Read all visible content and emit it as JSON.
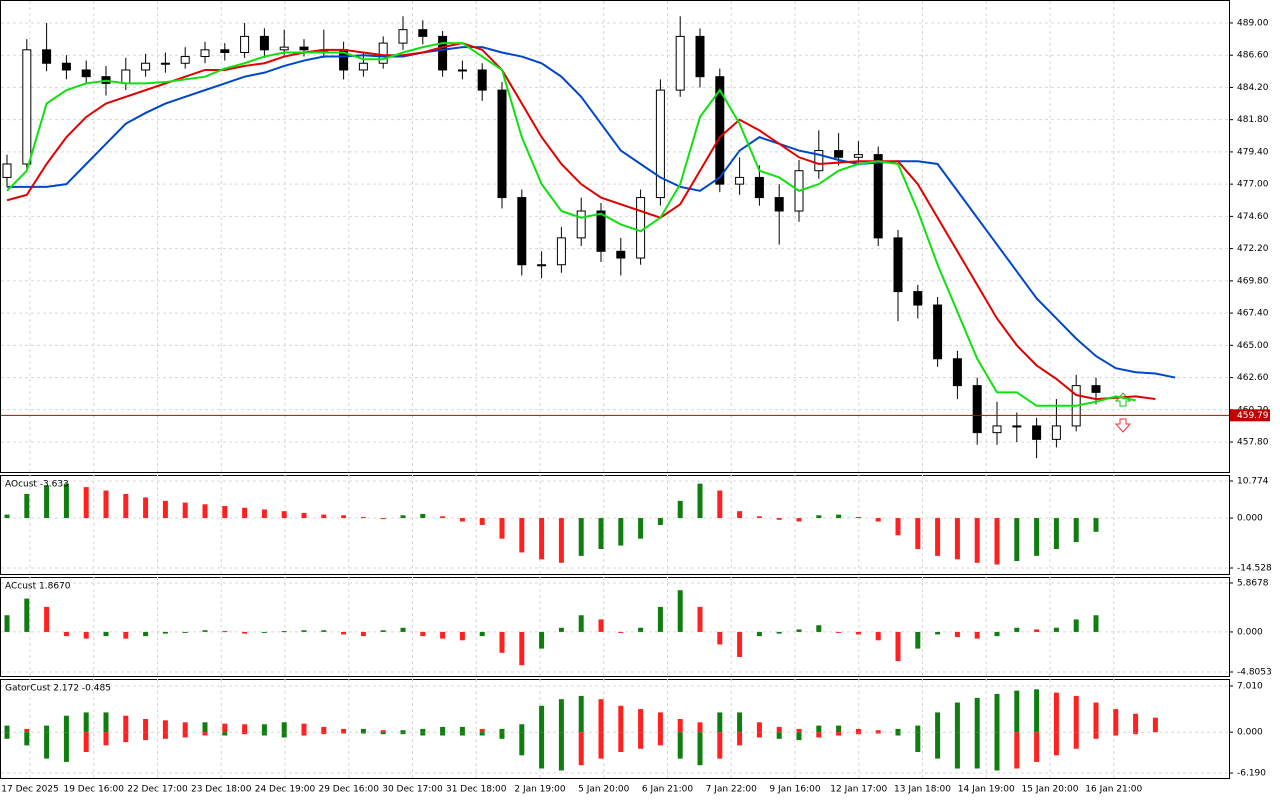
{
  "chart_data": [
    {
      "type": "candlestick",
      "open": [
        477.5,
        478.5,
        487,
        486,
        485.5,
        485,
        484.5,
        485.5,
        486,
        486,
        486.5,
        487,
        486.8,
        488,
        487,
        487.2,
        487,
        487,
        485.5,
        486,
        487.5,
        488.5,
        488,
        485.5,
        485.5,
        484,
        476,
        471,
        471,
        473,
        475,
        472,
        471.5,
        476,
        484,
        488,
        485,
        477,
        477.5,
        476,
        475,
        478,
        479.5,
        479,
        479.2,
        473,
        469,
        468,
        464,
        462,
        458.5,
        459,
        459,
        458,
        459,
        462,
        null,
        null,
        null,
        null
      ],
      "high": [
        479.2,
        487.8,
        489,
        486.6,
        486.2,
        485.8,
        486.4,
        486.7,
        486.8,
        487.2,
        487.6,
        487.5,
        489,
        488.6,
        488.5,
        487.8,
        488.5,
        487.6,
        486.8,
        488,
        489.5,
        489.2,
        488.4,
        486.2,
        486,
        484.6,
        476.6,
        472,
        473.8,
        476,
        475.6,
        473,
        476.6,
        484.8,
        489.5,
        488.6,
        485.6,
        479,
        478.4,
        477,
        478.8,
        481,
        480.8,
        480.2,
        479.8,
        473.6,
        469.5,
        468.6,
        464.6,
        462.6,
        460.8,
        460,
        459.6,
        461,
        462.8,
        462.6,
        null,
        null,
        null,
        null
      ],
      "low": [
        476.8,
        478,
        485.4,
        484.8,
        484.5,
        483.6,
        484,
        485,
        485.3,
        485.6,
        486,
        486.2,
        486.4,
        486.4,
        486.6,
        486.5,
        486.4,
        484.8,
        485,
        485.6,
        487,
        487.4,
        485,
        484.8,
        483.2,
        475.2,
        470.2,
        470,
        470.4,
        472.4,
        471.2,
        470.2,
        471,
        475.4,
        483.5,
        484.2,
        476.4,
        476.2,
        475.4,
        472.5,
        474.2,
        477.4,
        478.4,
        478.5,
        472.4,
        466.8,
        467,
        463.4,
        461,
        457.6,
        457.6,
        457.8,
        456.6,
        457.4,
        458.6,
        460.6,
        null,
        null,
        null,
        null
      ],
      "close": [
        478.5,
        487,
        486,
        485.5,
        485,
        484.5,
        485.5,
        486,
        486,
        486.5,
        487,
        486.8,
        488,
        487,
        487.2,
        487,
        487,
        485.5,
        486,
        487.5,
        488.5,
        488,
        485.5,
        485.5,
        484,
        476,
        471,
        471,
        473,
        475,
        472,
        471.5,
        476,
        484,
        488,
        485,
        477,
        477.5,
        476,
        475,
        478,
        479.5,
        479,
        479.2,
        473,
        469,
        468,
        464,
        462,
        458.5,
        459,
        459,
        458,
        459,
        462,
        461.5,
        null,
        null,
        null,
        null
      ],
      "series": [
        {
          "color": "#0047c8",
          "values": [
            476.8,
            476.8,
            476.8,
            477,
            478.5,
            480,
            481.5,
            482.3,
            483,
            483.5,
            484,
            484.5,
            485,
            485.3,
            485.8,
            486.2,
            486.5,
            486.5,
            486.6,
            486.5,
            486.5,
            486.8,
            487,
            487.2,
            487.2,
            486.8,
            486.5,
            486,
            485,
            483.5,
            481.5,
            479.5,
            478.5,
            477.5,
            476.8,
            476.5,
            477.5,
            479.5,
            480.5,
            480,
            479.5,
            479.2,
            478.8,
            478.5,
            478.6,
            478.7,
            478.7,
            478.5,
            476.5,
            474.5,
            472.5,
            470.5,
            468.5,
            467,
            465.5,
            464.2,
            463.3,
            463,
            462.9,
            462.6
          ]
        },
        {
          "color": "#e00000",
          "values": [
            475.8,
            476.2,
            478.5,
            480.5,
            482,
            483,
            483.5,
            484,
            484.5,
            485,
            485.5,
            485.5,
            485.8,
            486,
            486.5,
            486.8,
            487,
            487,
            486.8,
            486.6,
            486.6,
            486.8,
            487.2,
            487.5,
            487,
            485.5,
            483,
            480.5,
            478.5,
            477,
            476,
            475.5,
            475,
            474.5,
            475.5,
            478,
            480.5,
            481.8,
            481,
            480,
            479,
            478.5,
            478.6,
            478.7,
            478.7,
            478.7,
            477,
            474.5,
            472,
            469.5,
            467,
            465,
            463.5,
            462.5,
            461.3,
            461,
            461.1,
            461.2,
            461,
            null
          ]
        },
        {
          "color": "#10e010",
          "values": [
            476.5,
            478,
            483,
            484,
            484.5,
            484.7,
            484.5,
            484.5,
            484.6,
            484.8,
            485,
            485.6,
            486,
            486.5,
            486.8,
            486.8,
            486.8,
            486.8,
            486.3,
            486.3,
            486.8,
            487.2,
            487.5,
            487.5,
            486.5,
            485.5,
            480.5,
            477,
            475,
            474.5,
            474.8,
            474,
            473.5,
            474.5,
            477,
            482,
            484,
            481.5,
            478,
            477.5,
            476.5,
            477,
            478,
            478.5,
            478.7,
            478.5,
            475,
            471,
            467.5,
            464,
            461.5,
            461.5,
            460.5,
            460.5,
            460.5,
            460.8,
            461.2,
            460.9,
            null,
            null
          ]
        }
      ],
      "ylim": [
        455.57,
        490.56
      ],
      "yticks": [
        {
          "value": 489,
          "label": "489.00"
        },
        {
          "value": 486.6,
          "label": "486.60"
        },
        {
          "value": 484.2,
          "label": "484.20"
        },
        {
          "value": 481.8,
          "label": "481.80"
        },
        {
          "value": 479.4,
          "label": "479.40"
        },
        {
          "value": 477,
          "label": "477.00"
        },
        {
          "value": 474.6,
          "label": "474.60"
        },
        {
          "value": 472.2,
          "label": "472.20"
        },
        {
          "value": 469.8,
          "label": "469.80"
        },
        {
          "value": 467.4,
          "label": "467.40"
        },
        {
          "value": 465,
          "label": "465.00"
        },
        {
          "value": 462.6,
          "label": "462.60"
        },
        {
          "value": 460.2,
          "label": "460.20"
        },
        {
          "value": 457.8,
          "label": "457.80"
        }
      ],
      "current_price": {
        "value": 459.79,
        "label": "459.79"
      },
      "x_labels": [
        "17 Dec 2025",
        "19 Dec 16:00",
        "22 Dec 17:00",
        "23 Dec 18:00",
        "24 Dec 19:00",
        "29 Dec 16:00",
        "30 Dec 17:00",
        "31 Dec 18:00",
        "2 Jan 19:00",
        "5 Jan 20:00",
        "6 Jan 21:00",
        "7 Jan 22:00",
        "9 Jan 16:00",
        "12 Jan 17:00",
        "13 Jan 18:00",
        "14 Jan 19:00",
        "15 Jan 20:00",
        "16 Jan 21:00"
      ],
      "grid": true
    },
    {
      "type": "bar",
      "title": "AOcust -3.633",
      "up_color": "#0f7d0f",
      "down_color": "#ff2020",
      "values": [
        1,
        7,
        9.5,
        10,
        9,
        8,
        7,
        6,
        5,
        4.5,
        4,
        3.5,
        3,
        2.5,
        2,
        1.5,
        1,
        0.8,
        0.3,
        0,
        0.8,
        1.2,
        0.5,
        -1,
        -2,
        -6,
        -10,
        -12,
        -13,
        -11,
        -9,
        -8,
        -6,
        -2,
        5,
        10,
        8,
        2,
        0.5,
        -0.5,
        -1,
        0.8,
        1,
        0.3,
        -1,
        -5,
        -9,
        -11,
        -12,
        -13,
        -13.5,
        -12.5,
        -11,
        -9,
        -7,
        -4,
        null,
        null,
        null,
        null
      ],
      "ylim": [
        -16.27,
        12.23
      ],
      "yticks": [
        {
          "value": 10.774,
          "label": "10.774"
        },
        {
          "value": 0,
          "label": "0.000"
        },
        {
          "value": -14.528,
          "label": "-14.528"
        }
      ]
    },
    {
      "type": "bar",
      "title": "ACcust 1.8670",
      "up_color": "#0f7d0f",
      "down_color": "#ff2020",
      "values": [
        2,
        4,
        3,
        -0.5,
        -0.8,
        -0.5,
        -0.8,
        -0.5,
        -0.2,
        0,
        0.2,
        0.1,
        -0.2,
        0,
        0.1,
        0.2,
        0.2,
        -0.3,
        -0.5,
        0.2,
        0.5,
        -0.5,
        -0.8,
        -1,
        -0.5,
        -2.5,
        -4,
        -2,
        0.5,
        2,
        1.5,
        0,
        0.5,
        3,
        5,
        3,
        -1.5,
        -3,
        -0.5,
        -0.2,
        0.3,
        0.8,
        0,
        -0.3,
        -1,
        -3.5,
        -2,
        -0.3,
        -0.6,
        -0.8,
        -0.5,
        0.5,
        0.3,
        0.5,
        1.5,
        2,
        null,
        null,
        null,
        null
      ],
      "ylim": [
        -5.285,
        6.467
      ],
      "yticks": [
        {
          "value": 5.8678,
          "label": "5.8678"
        },
        {
          "value": 0,
          "label": "0.000"
        },
        {
          "value": -4.8053,
          "label": "-4.8053"
        }
      ]
    },
    {
      "type": "gator",
      "title": "GatorCust 2.172 -0.485",
      "up_color": "#0f7d0f",
      "down_color": "#ff2020",
      "upper": [
        1,
        0.5,
        1,
        2.5,
        3,
        3,
        2.5,
        2,
        1.8,
        1.5,
        1.5,
        1.3,
        1.2,
        1.2,
        1.5,
        1.3,
        0.8,
        0.5,
        0.5,
        0.3,
        0.3,
        0.5,
        0.8,
        0.8,
        0.5,
        0.5,
        1.2,
        4,
        5,
        5.5,
        5,
        4,
        3.5,
        3,
        2,
        1.5,
        3,
        3,
        1.5,
        0.8,
        0.5,
        1,
        1,
        0.5,
        0.3,
        0.5,
        1,
        3,
        4.5,
        5.2,
        5.8,
        6.3,
        6.5,
        6,
        5.5,
        4.5,
        3.5,
        2.8,
        2.2,
        null
      ],
      "lower": [
        -1,
        -2,
        -4,
        -4.5,
        -3,
        -2,
        -1.5,
        -1.2,
        -1,
        -0.8,
        -0.5,
        -0.5,
        -0.3,
        -0.5,
        -0.8,
        -0.5,
        -0.3,
        -0.2,
        -0.2,
        -0.3,
        -0.3,
        -0.5,
        -0.5,
        -0.5,
        -0.5,
        -1,
        -3.5,
        -5.5,
        -5.8,
        -5,
        -4,
        -3,
        -2.5,
        -2,
        -4,
        -5,
        -4,
        -2,
        -0.8,
        -1,
        -1.2,
        -0.8,
        -0.5,
        -0.3,
        -0.2,
        -0.5,
        -3,
        -4,
        -5.5,
        -5.5,
        -5.8,
        -5.5,
        -4.5,
        -3.5,
        -2.5,
        -1,
        -0.5,
        -0.3,
        null,
        null
      ],
      "ylim": [
        -6.94,
        7.91
      ],
      "yticks": [
        {
          "value": 7.01,
          "label": "7.010"
        },
        {
          "value": 0,
          "label": "0.000"
        },
        {
          "value": -6.19,
          "label": "-6.190"
        }
      ]
    }
  ]
}
